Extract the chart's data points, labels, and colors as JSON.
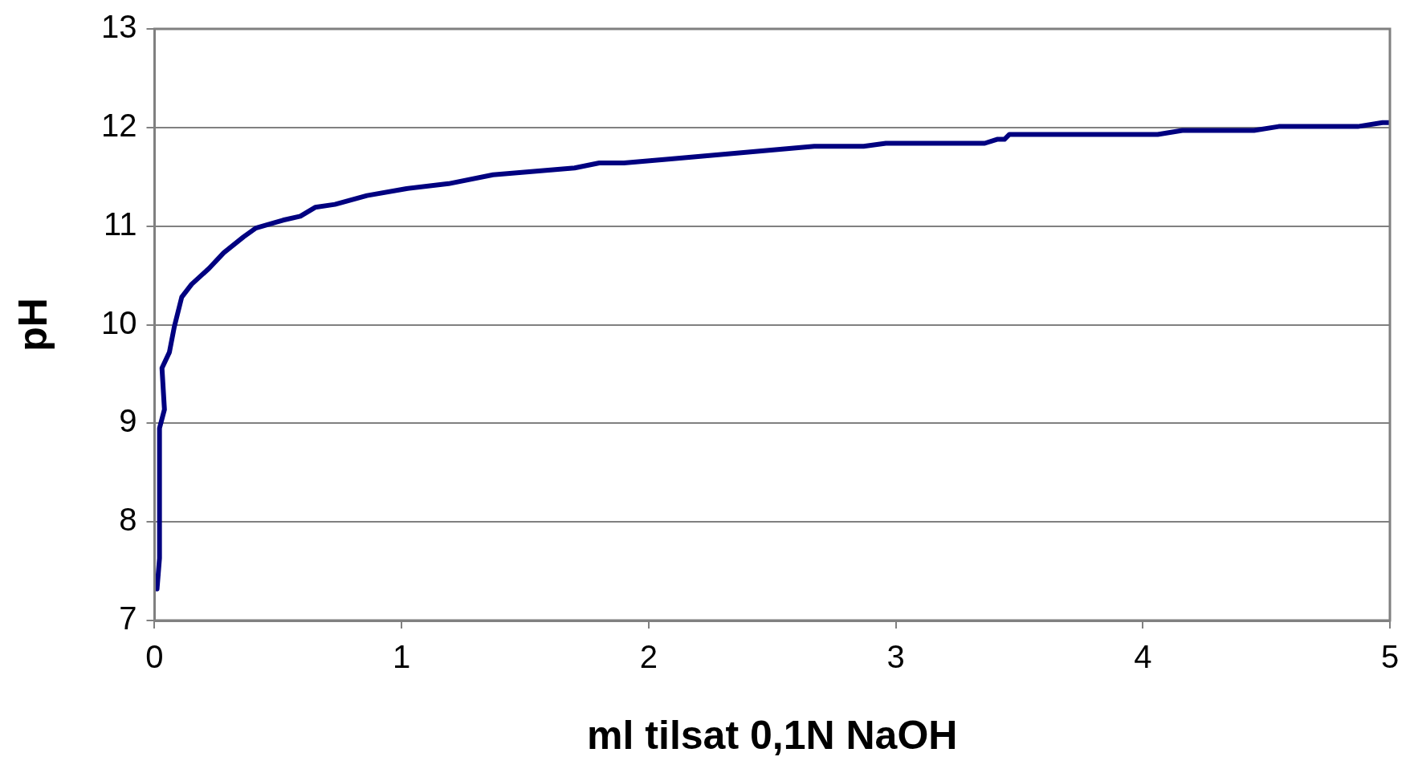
{
  "chart_data": {
    "type": "line",
    "xlabel": "ml tilsat 0,1N NaOH",
    "ylabel": "pH",
    "x": [
      0.01,
      0.02,
      0.02,
      0.04,
      0.03,
      0.06,
      0.08,
      0.11,
      0.15,
      0.22,
      0.28,
      0.36,
      0.41,
      0.48,
      0.52,
      0.59,
      0.65,
      0.73,
      0.86,
      1.02,
      1.19,
      1.37,
      1.7,
      1.8,
      1.9,
      2.08,
      2.67,
      2.87,
      2.96,
      3.36,
      3.41,
      3.44,
      3.46,
      4.06,
      4.16,
      4.45,
      4.55,
      4.87,
      4.97,
      5.0
    ],
    "series": [
      {
        "color": "#000080",
        "values": [
          7.32,
          7.63,
          8.95,
          9.14,
          9.56,
          9.72,
          9.98,
          10.28,
          10.41,
          10.57,
          10.73,
          10.89,
          10.98,
          11.03,
          11.06,
          11.1,
          11.19,
          11.22,
          11.31,
          11.38,
          11.43,
          11.52,
          11.59,
          11.64,
          11.64,
          11.68,
          11.81,
          11.81,
          11.84,
          11.84,
          11.88,
          11.88,
          11.93,
          11.93,
          11.97,
          11.97,
          12.01,
          12.01,
          12.05,
          12.05
        ]
      }
    ],
    "xlim": [
      0,
      5
    ],
    "ylim": [
      7,
      13
    ],
    "xticks": [
      0,
      1,
      2,
      3,
      4,
      5
    ],
    "yticks": [
      7,
      8,
      9,
      10,
      11,
      12,
      13
    ],
    "grid": "y",
    "legend": false,
    "marker": "none",
    "line_style": "solid"
  }
}
